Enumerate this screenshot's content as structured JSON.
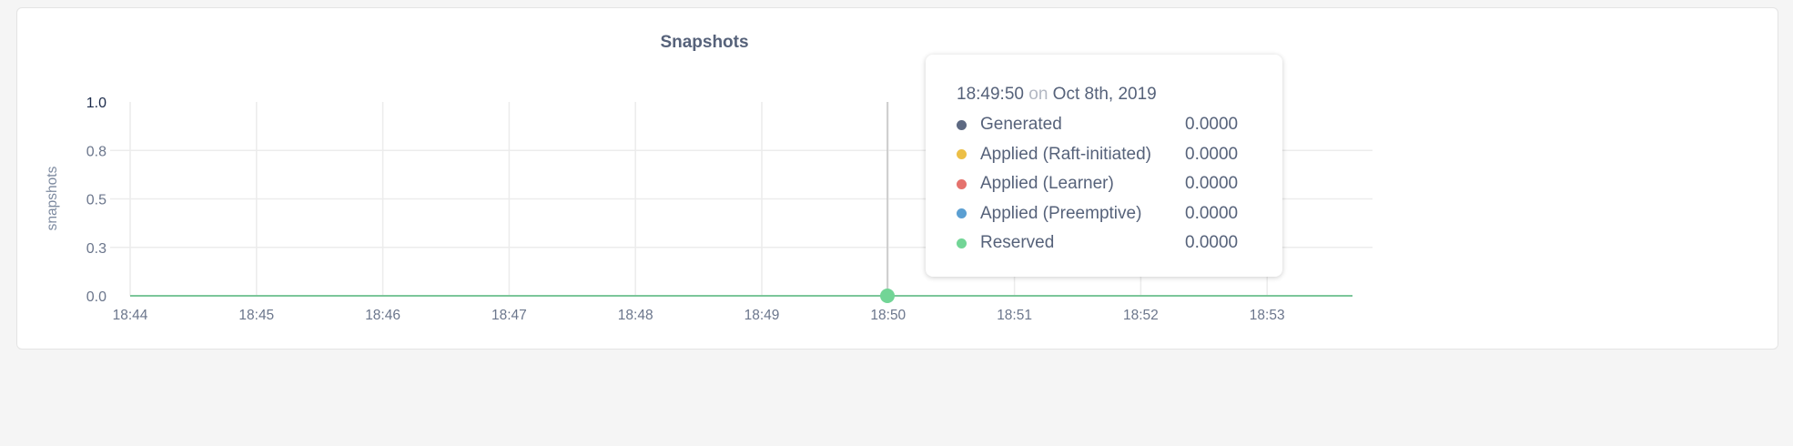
{
  "chart_data": {
    "type": "line",
    "title": "Snapshots",
    "ylabel": "snapshots",
    "xlabel": "",
    "ylim": [
      0,
      1
    ],
    "yticks": [
      0,
      0.25,
      0.5,
      0.75,
      1.0
    ],
    "ytick_labels": [
      "0.0",
      "0.3",
      "0.5",
      "0.8",
      "1.0"
    ],
    "x": [
      "18:44",
      "18:45",
      "18:46",
      "18:47",
      "18:48",
      "18:49",
      "18:50",
      "18:51",
      "18:52",
      "18:53"
    ],
    "grid": true,
    "series": [
      {
        "name": "Generated",
        "color": "#5d6982",
        "values": [
          0,
          0,
          0,
          0,
          0,
          0,
          0,
          0,
          0,
          0
        ]
      },
      {
        "name": "Applied (Raft-initiated)",
        "color": "#ecbf47",
        "values": [
          0,
          0,
          0,
          0,
          0,
          0,
          0,
          0,
          0,
          0
        ]
      },
      {
        "name": "Applied (Learner)",
        "color": "#e5726d",
        "values": [
          0,
          0,
          0,
          0,
          0,
          0,
          0,
          0,
          0,
          0
        ]
      },
      {
        "name": "Applied (Preemptive)",
        "color": "#5b9fd2",
        "values": [
          0,
          0,
          0,
          0,
          0,
          0,
          0,
          0,
          0,
          0
        ]
      },
      {
        "name": "Reserved",
        "color": "#72d596",
        "values": [
          0,
          0,
          0,
          0,
          0,
          0,
          0,
          0,
          0,
          0
        ]
      }
    ]
  },
  "tooltip": {
    "time": "18:49:50",
    "on": "on",
    "date": "Oct 8th, 2019",
    "rows": [
      {
        "label": "Generated",
        "value": "0.0000",
        "color": "#5d6982"
      },
      {
        "label": "Applied (Raft-initiated)",
        "value": "0.0000",
        "color": "#ecbf47"
      },
      {
        "label": "Applied (Learner)",
        "value": "0.0000",
        "color": "#e5726d"
      },
      {
        "label": "Applied (Preemptive)",
        "value": "0.0000",
        "color": "#5b9fd2"
      },
      {
        "label": "Reserved",
        "value": "0.0000",
        "color": "#72d596"
      }
    ]
  }
}
